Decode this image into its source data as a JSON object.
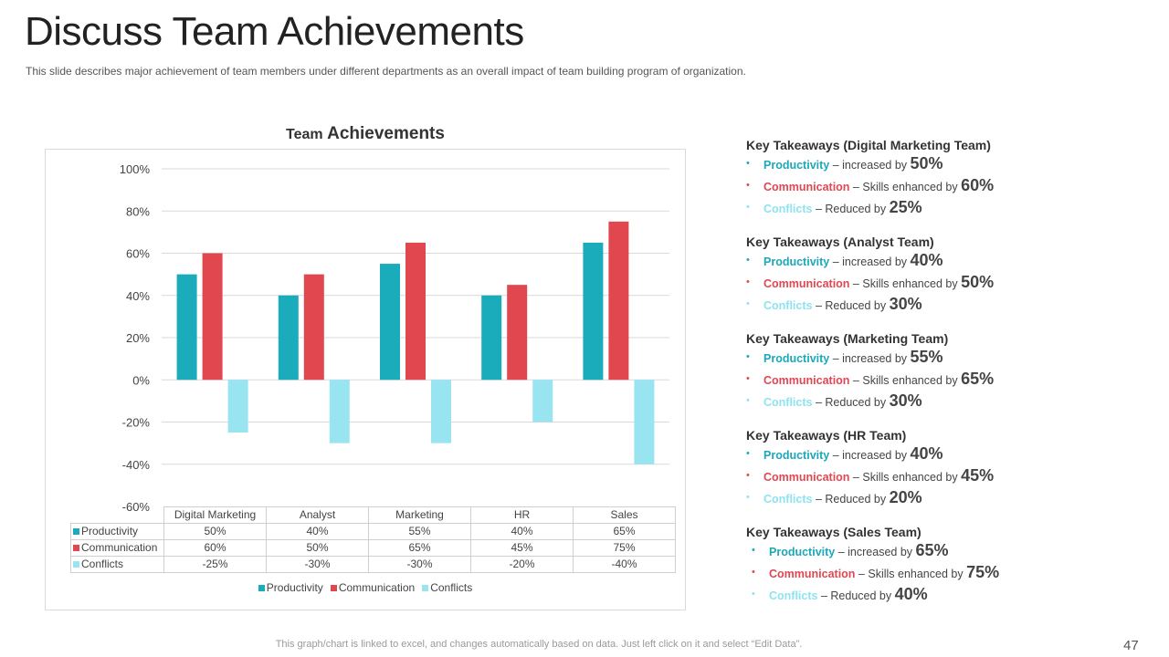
{
  "slide": {
    "title": "Discuss Team Achievements",
    "subtitle": "This slide describes major achievement  of team members under different departments as an overall  impact of team building program of organization.",
    "footnote": "This graph/chart is linked to excel, and changes automatically based on data. Just left click on it and select “Edit Data”.",
    "page_number": "47"
  },
  "colors": {
    "productivity": "#1aacbb",
    "communication": "#e0474f",
    "conflicts": "#98e4f1",
    "gridline": "#d9d9d9"
  },
  "chart_data": {
    "type": "bar",
    "title_small": "Team",
    "title_large": "Achievements",
    "categories": [
      "Digital Marketing",
      "Analyst",
      "Marketing",
      "HR",
      "Sales"
    ],
    "series": [
      {
        "name": "Productivity",
        "values": [
          50,
          40,
          55,
          40,
          65
        ],
        "labels": [
          "50%",
          "40%",
          "55%",
          "40%",
          "65%"
        ]
      },
      {
        "name": "Communication",
        "values": [
          60,
          50,
          65,
          45,
          75
        ],
        "labels": [
          "60%",
          "50%",
          "65%",
          "45%",
          "75%"
        ]
      },
      {
        "name": "Conflicts",
        "values": [
          -25,
          -30,
          -30,
          -20,
          -40
        ],
        "labels": [
          "-25%",
          "-30%",
          "-30%",
          "-20%",
          "-40%"
        ]
      }
    ],
    "y_ticks": [
      "100%",
      "80%",
      "60%",
      "40%",
      "20%",
      "0%",
      "-20%",
      "-40%",
      "-60%"
    ],
    "ylim": [
      -60,
      100
    ],
    "grid": true,
    "legend_position": "bottom"
  },
  "takeaways": [
    {
      "heading": "Key Takeaways (Digital Marketing Team)",
      "items": [
        {
          "key": "Productivity",
          "text": " – increased  by ",
          "pct": "50%"
        },
        {
          "key": "Communication",
          "text": " – Skills enhanced  by ",
          "pct": "60%"
        },
        {
          "key": "Conflicts",
          "text": " – Reduced  by ",
          "pct": "25%"
        }
      ]
    },
    {
      "heading": "Key Takeaways (Analyst  Team)",
      "items": [
        {
          "key": "Productivity",
          "text": " – increased  by ",
          "pct": "40%"
        },
        {
          "key": "Communication",
          "text": " – Skills enhanced  by ",
          "pct": "50%"
        },
        {
          "key": "Conflicts",
          "text": "  – Reduced  by ",
          "pct": "30%"
        }
      ]
    },
    {
      "heading": "Key Takeaways (Marketing Team)",
      "items": [
        {
          "key": "Productivity",
          "text": " – increased  by ",
          "pct": "55%"
        },
        {
          "key": "Communication",
          "text": " – Skills enhanced  by ",
          "pct": "65%"
        },
        {
          "key": "Conflicts",
          "text": "  – Reduced  by ",
          "pct": "30%"
        }
      ]
    },
    {
      "heading": "Key Takeaways (HR Team)",
      "items": [
        {
          "key": "Productivity",
          "text": " – increased  by ",
          "pct": "40%"
        },
        {
          "key": "Communication",
          "text": " – Skills enhanced  by ",
          "pct": "45%"
        },
        {
          "key": "Conflicts",
          "text": "  – Reduced  by ",
          "pct": "20%"
        }
      ]
    },
    {
      "heading": "Key Takeaways (Sales Team)",
      "items": [
        {
          "key": "Productivity",
          "text": " – increased  by ",
          "pct": "65%"
        },
        {
          "key": "Communication",
          "text": " – Skills enhanced  by ",
          "pct": "75%"
        },
        {
          "key": "Conflicts",
          "text": "  – Reduced  by ",
          "pct": "40%"
        }
      ]
    }
  ]
}
